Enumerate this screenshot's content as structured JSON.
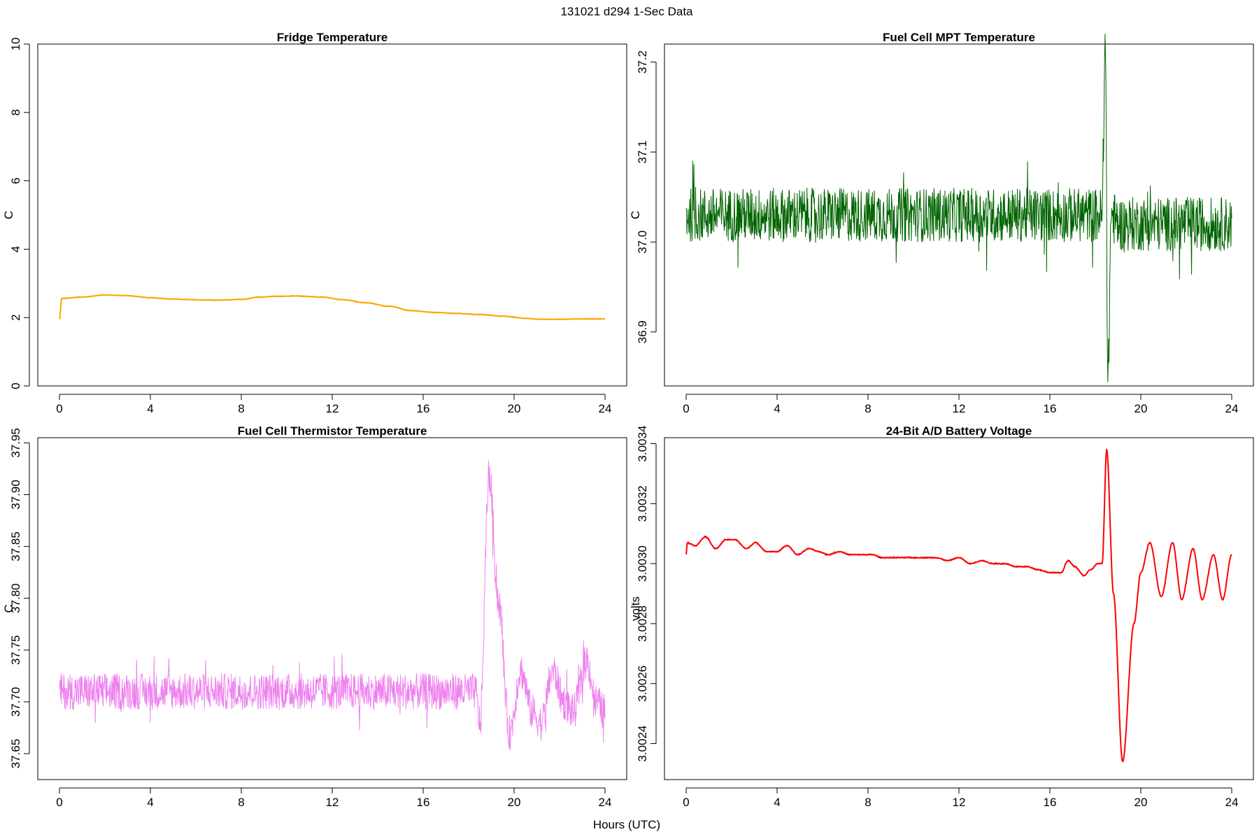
{
  "figure": {
    "title": "131021   d294   1-Sec Data",
    "xlabel": "Hours (UTC)"
  },
  "chart_data": [
    {
      "type": "line",
      "title": "Fridge Temperature",
      "ylabel": "C",
      "xlim": [
        0,
        24
      ],
      "ylim": [
        0,
        10
      ],
      "xticks": [
        "0",
        "4",
        "8",
        "12",
        "16",
        "20",
        "24"
      ],
      "xtick_values": [
        0,
        4,
        8,
        12,
        16,
        20,
        24
      ],
      "yticks": [
        "0",
        "2",
        "4",
        "6",
        "8",
        "10"
      ],
      "ytick_values": [
        0,
        2,
        4,
        6,
        8,
        10
      ],
      "color": "#ffa500",
      "noise": 0.015,
      "series": [
        {
          "name": "Fridge Temperature",
          "x": [
            0,
            0.1,
            1,
            2,
            3,
            4,
            5,
            6,
            7,
            8,
            8.8,
            9.5,
            10.5,
            11.5,
            12.5,
            13.5,
            14.5,
            15.5,
            16.5,
            17.5,
            18.5,
            19.5,
            20.5,
            21,
            22,
            23,
            24
          ],
          "y": [
            1.95,
            2.56,
            2.6,
            2.66,
            2.64,
            2.58,
            2.54,
            2.52,
            2.51,
            2.53,
            2.6,
            2.62,
            2.63,
            2.6,
            2.52,
            2.43,
            2.33,
            2.2,
            2.15,
            2.12,
            2.09,
            2.04,
            1.98,
            1.95,
            1.95,
            1.96,
            1.96
          ]
        }
      ]
    },
    {
      "type": "line",
      "title": "Fuel Cell MPT Temperature",
      "ylabel": "C",
      "xlim": [
        0,
        24
      ],
      "ylim": [
        36.84,
        37.22
      ],
      "xticks": [
        "0",
        "4",
        "8",
        "12",
        "16",
        "20",
        "24"
      ],
      "xtick_values": [
        0,
        4,
        8,
        12,
        16,
        20,
        24
      ],
      "yticks": [
        "36.9",
        "37.0",
        "37.1",
        "37.2"
      ],
      "ytick_values": [
        36.9,
        37.0,
        37.1,
        37.2
      ],
      "color": "#006400",
      "noise": 0.06,
      "series": [
        {
          "name": "Fuel Cell MPT Temperature",
          "x": [
            0,
            4,
            8,
            12,
            16,
            18.3,
            18.45,
            18.55,
            18.7,
            19,
            20,
            24
          ],
          "y": [
            37.03,
            37.03,
            37.03,
            37.03,
            37.03,
            37.03,
            37.22,
            36.84,
            37.03,
            37.02,
            37.02,
            37.02
          ]
        }
      ]
    },
    {
      "type": "line",
      "title": "Fuel Cell Thermistor Temperature",
      "ylabel": "C",
      "xlim": [
        0,
        24
      ],
      "ylim": [
        37.625,
        37.955
      ],
      "xticks": [
        "0",
        "4",
        "8",
        "12",
        "16",
        "20",
        "24"
      ],
      "xtick_values": [
        0,
        4,
        8,
        12,
        16,
        20,
        24
      ],
      "yticks": [
        "37.65",
        "37.70",
        "37.75",
        "37.80",
        "37.85",
        "37.90",
        "37.95"
      ],
      "ytick_values": [
        37.65,
        37.7,
        37.75,
        37.8,
        37.85,
        37.9,
        37.95
      ],
      "color": "#ee82ee",
      "noise": 0.035,
      "series": [
        {
          "name": "Fuel Cell Thermistor Temperature",
          "x": [
            0,
            4,
            8,
            12,
            16,
            18.3,
            18.5,
            18.9,
            19.3,
            19.8,
            20.3,
            20.8,
            21.2,
            21.7,
            22.2,
            22.6,
            23.2,
            23.6,
            24
          ],
          "y": [
            37.71,
            37.71,
            37.71,
            37.71,
            37.71,
            37.71,
            37.68,
            37.92,
            37.8,
            37.67,
            37.73,
            37.69,
            37.68,
            37.73,
            37.7,
            37.69,
            37.74,
            37.7,
            37.69
          ]
        }
      ]
    },
    {
      "type": "line",
      "title": "24-Bit A/D Battery Voltage",
      "ylabel": "volts",
      "xlim": [
        0,
        24
      ],
      "ylim": [
        3.00228,
        3.00342
      ],
      "xticks": [
        "0",
        "4",
        "8",
        "12",
        "16",
        "20",
        "24"
      ],
      "xtick_values": [
        0,
        4,
        8,
        12,
        16,
        20,
        24
      ],
      "yticks": [
        "3.0024",
        "3.0026",
        "3.0028",
        "3.0030",
        "3.0032",
        "3.0034"
      ],
      "ytick_values": [
        3.0024,
        3.0026,
        3.0028,
        3.003,
        3.0032,
        3.0034
      ],
      "color": "#ff0000",
      "noise": 3e-06,
      "series": [
        {
          "name": "24-Bit A/D Battery Voltage",
          "x": [
            0,
            0.05,
            0.4,
            0.85,
            1.3,
            1.75,
            2.15,
            2.65,
            3.05,
            3.55,
            4,
            4.45,
            4.9,
            5.4,
            5.85,
            6.25,
            6.75,
            7.2,
            7.7,
            8.2,
            8.6,
            9,
            9.5,
            10,
            10.5,
            11,
            11.5,
            12,
            12.5,
            13,
            13.5,
            14,
            14.5,
            15,
            15.5,
            16,
            16.5,
            16.8,
            17.1,
            17.5,
            17.8,
            18.1,
            18.3,
            18.5,
            18.8,
            19.2,
            19.7,
            20.0,
            20.4,
            20.9,
            21.4,
            21.8,
            22.3,
            22.7,
            23.2,
            23.6,
            24
          ],
          "y": [
            3.00303,
            3.00307,
            3.00306,
            3.00309,
            3.00305,
            3.00308,
            3.00308,
            3.00305,
            3.00307,
            3.00304,
            3.00304,
            3.00306,
            3.00303,
            3.00305,
            3.00304,
            3.00303,
            3.00304,
            3.00303,
            3.00303,
            3.00303,
            3.00302,
            3.00302,
            3.00302,
            3.00302,
            3.00302,
            3.00302,
            3.00301,
            3.00302,
            3.003,
            3.00301,
            3.003,
            3.003,
            3.00299,
            3.00299,
            3.00298,
            3.00297,
            3.00297,
            3.00301,
            3.00299,
            3.00296,
            3.00298,
            3.003,
            3.003,
            3.00338,
            3.0029,
            3.00234,
            3.0028,
            3.00297,
            3.00307,
            3.00289,
            3.00307,
            3.00288,
            3.00305,
            3.00288,
            3.00303,
            3.00288,
            3.00303
          ]
        }
      ]
    }
  ]
}
